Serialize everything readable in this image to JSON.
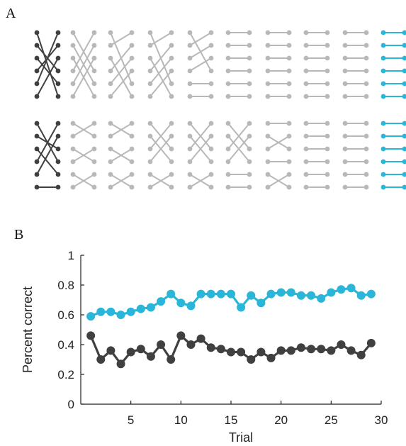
{
  "panels": {
    "a_label": "A",
    "b_label": "B"
  },
  "diagram": {
    "colors": {
      "dark": "#404040",
      "light": "#b8b8b8",
      "final": "#29b6d8"
    },
    "rows": [
      {
        "permutations": [
          [
            5,
            3,
            4,
            1,
            0,
            2
          ],
          [
            3,
            4,
            5,
            0,
            1,
            2
          ],
          [
            4,
            0,
            5,
            1,
            2,
            3
          ],
          [
            4,
            0,
            5,
            1,
            2,
            3
          ],
          [
            3,
            0,
            1,
            2,
            4,
            5
          ],
          [
            0,
            1,
            2,
            3,
            4,
            5
          ],
          [
            0,
            1,
            2,
            3,
            4,
            5
          ],
          [
            0,
            1,
            2,
            3,
            4,
            5
          ],
          [
            0,
            1,
            2,
            3,
            4,
            5
          ],
          [
            0,
            1,
            2,
            3,
            4,
            5
          ]
        ]
      },
      {
        "permutations": [
          [
            3,
            2,
            4,
            0,
            1,
            5
          ],
          [
            1,
            0,
            3,
            2,
            5,
            4
          ],
          [
            1,
            0,
            3,
            2,
            5,
            4
          ],
          [
            2,
            3,
            0,
            1,
            5,
            4
          ],
          [
            2,
            3,
            0,
            1,
            5,
            4
          ],
          [
            2,
            3,
            0,
            1,
            4,
            5
          ],
          [
            0,
            2,
            1,
            3,
            5,
            4
          ],
          [
            0,
            1,
            2,
            3,
            4,
            5
          ],
          [
            0,
            1,
            2,
            3,
            4,
            5
          ],
          [
            0,
            1,
            2,
            3,
            4,
            5
          ]
        ]
      }
    ]
  },
  "chart_data": {
    "type": "line",
    "title": "",
    "xlabel": "Trial",
    "ylabel": "Percent correct",
    "xlim": [
      0,
      30
    ],
    "ylim": [
      0,
      1
    ],
    "xticks": [
      5,
      10,
      15,
      20,
      25,
      30
    ],
    "yticks": [
      0,
      0.2,
      0.4,
      0.6,
      0.8,
      1
    ],
    "ytick_labels": [
      "0",
      "0.2",
      "0.4",
      "0.6",
      "0.8",
      "1"
    ],
    "grid": false,
    "x": [
      1,
      2,
      3,
      4,
      5,
      6,
      7,
      8,
      9,
      10,
      11,
      12,
      13,
      14,
      15,
      16,
      17,
      18,
      19,
      20,
      21,
      22,
      23,
      24,
      25,
      26,
      27,
      28,
      29
    ],
    "series": [
      {
        "color": "#29b6d8",
        "values": [
          0.59,
          0.62,
          0.62,
          0.6,
          0.62,
          0.64,
          0.65,
          0.69,
          0.74,
          0.68,
          0.66,
          0.74,
          0.74,
          0.74,
          0.74,
          0.65,
          0.73,
          0.68,
          0.74,
          0.75,
          0.75,
          0.73,
          0.73,
          0.71,
          0.75,
          0.77,
          0.78,
          0.73,
          0.74
        ]
      },
      {
        "color": "#404040",
        "values": [
          0.46,
          0.3,
          0.36,
          0.27,
          0.35,
          0.37,
          0.32,
          0.4,
          0.3,
          0.46,
          0.4,
          0.44,
          0.38,
          0.37,
          0.35,
          0.35,
          0.3,
          0.35,
          0.31,
          0.36,
          0.36,
          0.38,
          0.37,
          0.37,
          0.36,
          0.4,
          0.36,
          0.33,
          0.41
        ]
      }
    ]
  }
}
